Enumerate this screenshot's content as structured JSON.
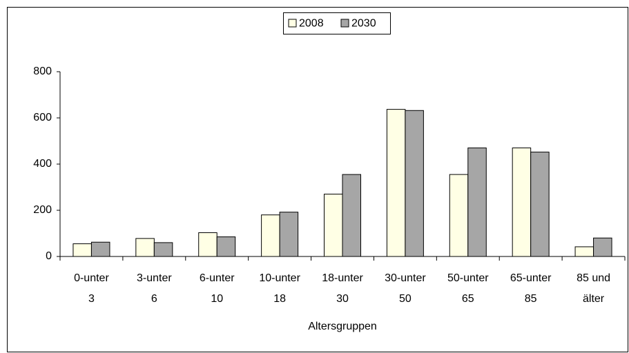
{
  "chart_data": {
    "type": "bar",
    "categories": [
      [
        "0-unter",
        "3"
      ],
      [
        "3-unter",
        "6"
      ],
      [
        "6-unter",
        "10"
      ],
      [
        "10-unter",
        "18"
      ],
      [
        "18-unter",
        "30"
      ],
      [
        "30-unter",
        "50"
      ],
      [
        "50-unter",
        "65"
      ],
      [
        "65-unter",
        "85"
      ],
      [
        "85 und",
        "älter"
      ]
    ],
    "series": [
      {
        "name": "2008",
        "color": "#ffffe5",
        "values": [
          55,
          78,
          103,
          180,
          270,
          637,
          355,
          470,
          42
        ]
      },
      {
        "name": "2030",
        "color": "#a6a6a6",
        "values": [
          62,
          60,
          85,
          192,
          355,
          632,
          470,
          452,
          80
        ]
      }
    ],
    "xlabel": "Altersgruppen",
    "ylim": [
      0,
      800
    ],
    "yticks": [
      0,
      200,
      400,
      600,
      800
    ],
    "legend": "top"
  }
}
